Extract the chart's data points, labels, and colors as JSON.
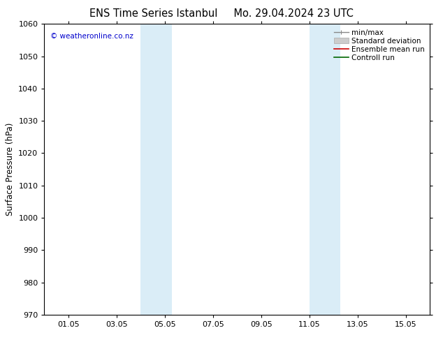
{
  "title": "ENS Time Series Istanbul     Mo. 29.04.2024 23 UTC",
  "ylabel": "Surface Pressure (hPa)",
  "ylim": [
    970,
    1060
  ],
  "yticks": [
    970,
    980,
    990,
    1000,
    1010,
    1020,
    1030,
    1040,
    1050,
    1060
  ],
  "xtick_labels": [
    "01.05",
    "03.05",
    "05.05",
    "07.05",
    "09.05",
    "11.05",
    "13.05",
    "15.05"
  ],
  "xtick_positions": [
    1,
    3,
    5,
    7,
    9,
    11,
    13,
    15
  ],
  "xlim": [
    0,
    16
  ],
  "blue_bands": [
    {
      "x_start": 4.0,
      "x_end": 5.3
    },
    {
      "x_start": 11.0,
      "x_end": 12.3
    }
  ],
  "blue_band_color": "#daedf7",
  "watermark_text": "© weatheronline.co.nz",
  "watermark_color": "#0000cc",
  "legend_items": [
    {
      "label": "min/max",
      "color": "#888888",
      "type": "hline_caps"
    },
    {
      "label": "Standard deviation",
      "color": "#bbbbbb",
      "type": "box"
    },
    {
      "label": "Ensemble mean run",
      "color": "#cc0000",
      "type": "line"
    },
    {
      "label": "Controll run",
      "color": "#006600",
      "type": "line"
    }
  ],
  "bg_color": "#ffffff",
  "axes_bg_color": "#ffffff",
  "title_fontsize": 10.5,
  "tick_fontsize": 8,
  "ylabel_fontsize": 8.5,
  "legend_fontsize": 7.5
}
